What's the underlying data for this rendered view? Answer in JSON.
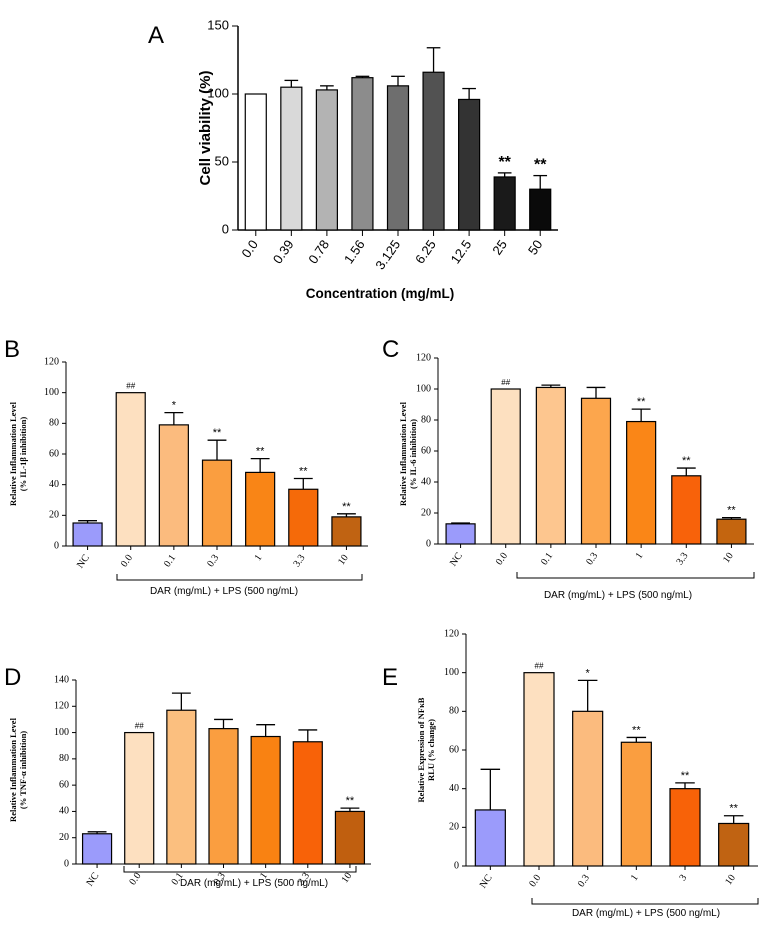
{
  "chart_data": [
    {
      "id": "A",
      "panel_label": "A",
      "type": "bar",
      "title": "",
      "xlabel": "Concentration (mg/mL)",
      "ylabel": "Cell viability (%)",
      "ylim": [
        0,
        150
      ],
      "yticks": [
        0,
        50,
        100,
        150
      ],
      "categories": [
        "0.0",
        "0.39",
        "0.78",
        "1.56",
        "3.125",
        "6.25",
        "12.5",
        "25",
        "50"
      ],
      "values": [
        100,
        105,
        103,
        112,
        106,
        116,
        96,
        39,
        30
      ],
      "errors": [
        0,
        5,
        3,
        1,
        7,
        18,
        8,
        3,
        10
      ],
      "annotations": [
        "",
        "",
        "",
        "",
        "",
        "",
        "",
        "**",
        "**"
      ],
      "colors": [
        "#ffffff",
        "#d9d9d9",
        "#b3b3b3",
        "#8c8c8c",
        "#6e6e6e",
        "#525252",
        "#333333",
        "#1a1a1a",
        "#0a0a0a"
      ]
    },
    {
      "id": "B",
      "panel_label": "B",
      "type": "bar",
      "title": "",
      "xlabel": "DAR (mg/mL) + LPS (500 ng/mL)",
      "ylabel": [
        "Relative Inflammation Level",
        "(% IL-1β inhibition)"
      ],
      "ylim": [
        0,
        120
      ],
      "yticks": [
        0,
        20,
        40,
        60,
        80,
        100,
        120
      ],
      "categories": [
        "NC",
        "0.0",
        "0.1",
        "0.3",
        "1",
        "3.3",
        "10"
      ],
      "values": [
        15,
        100,
        79,
        56,
        48,
        37,
        19
      ],
      "errors": [
        1.5,
        0,
        8,
        13,
        9,
        7,
        2
      ],
      "annotations": [
        "",
        "##",
        "*",
        "**",
        "**",
        "**",
        "**"
      ],
      "colors": [
        "#9b9bfb",
        "#fde0c0",
        "#fbbb7e",
        "#fa9e40",
        "#f98516",
        "#f56a09",
        "#c06312"
      ]
    },
    {
      "id": "C",
      "panel_label": "C",
      "type": "bar",
      "title": "",
      "xlabel": "DAR (mg/mL) + LPS (500 ng/mL)",
      "ylabel": [
        "Relative Inflammation Level",
        "(% IL-6 inhibition)"
      ],
      "ylim": [
        0,
        120
      ],
      "yticks": [
        0,
        20,
        40,
        60,
        80,
        100,
        120
      ],
      "categories": [
        "NC",
        "0.0",
        "0.1",
        "0.3",
        "1",
        "3.3",
        "10"
      ],
      "values": [
        13,
        100,
        101,
        94,
        79,
        44,
        16
      ],
      "errors": [
        0.5,
        0,
        1.5,
        7,
        8,
        5,
        1
      ],
      "annotations": [
        "",
        "##",
        "",
        "",
        "**",
        "**",
        "**"
      ],
      "colors": [
        "#9b9bfb",
        "#fde0c0",
        "#fdc68f",
        "#fca64d",
        "#fa8617",
        "#f8620a",
        "#c4650f"
      ]
    },
    {
      "id": "D",
      "panel_label": "D",
      "type": "bar",
      "title": "",
      "xlabel": "DAR (mg/mL) + LPS (500 ng/mL)",
      "ylabel": [
        "Relative Inflammation Level",
        "(% TNF-α inhibition)"
      ],
      "ylim": [
        0,
        140
      ],
      "yticks": [
        0,
        20,
        40,
        60,
        80,
        100,
        120,
        140
      ],
      "categories": [
        "NC",
        "0.0",
        "0.1",
        "0.3",
        "1",
        "3.3",
        "10"
      ],
      "values": [
        23,
        100,
        117,
        103,
        97,
        93,
        40
      ],
      "errors": [
        1.5,
        0,
        13,
        7,
        9,
        9,
        2.5
      ],
      "annotations": [
        "",
        "##",
        "",
        "",
        "",
        "",
        "**"
      ],
      "colors": [
        "#9b9bfb",
        "#fde0c0",
        "#fbbf7f",
        "#fa9e40",
        "#f98212",
        "#f86208",
        "#c05f0f"
      ]
    },
    {
      "id": "E",
      "panel_label": "E",
      "type": "bar",
      "title": "",
      "xlabel": "DAR (mg/mL) + LPS (500 ng/mL)",
      "ylabel": [
        "Relative Expression of NFκB",
        "RLU (% change)"
      ],
      "ylim": [
        0,
        120
      ],
      "yticks": [
        0,
        20,
        40,
        60,
        80,
        100,
        120
      ],
      "categories": [
        "NC",
        "0.0",
        "0.3",
        "1",
        "3",
        "10"
      ],
      "values": [
        29,
        100,
        80,
        64,
        40,
        22
      ],
      "errors": [
        21,
        0,
        16,
        2.5,
        3,
        4
      ],
      "annotations": [
        "",
        "##",
        "*",
        "**",
        "**",
        "**"
      ],
      "colors": [
        "#9b9bfb",
        "#fde0c0",
        "#fbbb7e",
        "#fa9e40",
        "#f86208",
        "#c06312"
      ]
    }
  ]
}
